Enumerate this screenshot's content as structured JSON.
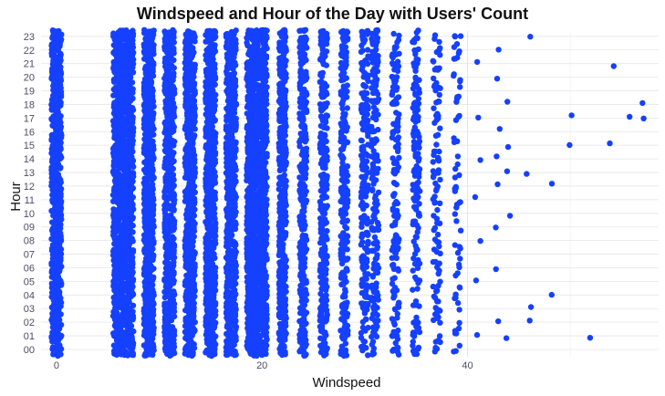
{
  "chart_data": {
    "type": "scatter",
    "title": "Windspeed and Hour of the Day with Users' Count",
    "xlabel": "Windspeed",
    "ylabel": "Hour",
    "xlim": [
      -1.5,
      58.6
    ],
    "x_ticks": [
      0,
      20,
      40
    ],
    "x_tick_labels": [
      "0",
      "20",
      "40"
    ],
    "y_ticks": [
      "00",
      "01",
      "02",
      "03",
      "04",
      "05",
      "06",
      "07",
      "08",
      "09",
      "10",
      "11",
      "12",
      "13",
      "14",
      "15",
      "16",
      "17",
      "18",
      "19",
      "20",
      "21",
      "22",
      "23"
    ],
    "grid": true,
    "legend": "none",
    "point_color": "#1540ff",
    "dense_columns": [
      {
        "x": 0,
        "density": 1.0
      },
      {
        "x": 6.0032,
        "density": 1.0
      },
      {
        "x": 7.0015,
        "density": 1.0
      },
      {
        "x": 8.9981,
        "density": 1.0
      },
      {
        "x": 11.0014,
        "density": 1.0
      },
      {
        "x": 12.998,
        "density": 1.0
      },
      {
        "x": 15.0013,
        "density": 1.0
      },
      {
        "x": 16.9979,
        "density": 1.0
      },
      {
        "x": 19.0012,
        "density": 1.0
      },
      {
        "x": 19.9995,
        "density": 0.95
      },
      {
        "x": 22.0028,
        "density": 0.8
      },
      {
        "x": 23.9994,
        "density": 0.65
      },
      {
        "x": 26.0027,
        "density": 0.55
      },
      {
        "x": 27.9993,
        "density": 0.45
      },
      {
        "x": 30.0026,
        "density": 0.4
      },
      {
        "x": 31.0009,
        "density": 0.35
      },
      {
        "x": 32.9975,
        "density": 0.3
      },
      {
        "x": 35.0008,
        "density": 0.25
      },
      {
        "x": 36.9974,
        "density": 0.18
      },
      {
        "x": 39.0007,
        "density": 0.12
      }
    ],
    "sparse_points": [
      {
        "x": 40.9973,
        "hours": [
          1,
          5,
          8,
          11,
          14,
          17,
          21
        ]
      },
      {
        "x": 43.0006,
        "hours": [
          2,
          6,
          9,
          12,
          14,
          16,
          20,
          22
        ]
      },
      {
        "x": 43.9989,
        "hours": [
          1,
          10,
          13,
          15,
          18
        ]
      },
      {
        "x": 46.0022,
        "hours": [
          2,
          3,
          13,
          23
        ]
      },
      {
        "x": 47.9988,
        "hours": [
          4,
          12
        ]
      },
      {
        "x": 50.0021,
        "hours": [
          15,
          17
        ]
      },
      {
        "x": 51.9987,
        "hours": [
          1
        ]
      },
      {
        "x": 54.002,
        "hours": [
          15,
          21
        ]
      },
      {
        "x": 55.9986,
        "hours": [
          17
        ]
      },
      {
        "x": 56.9969,
        "hours": [
          17,
          18
        ]
      }
    ]
  }
}
